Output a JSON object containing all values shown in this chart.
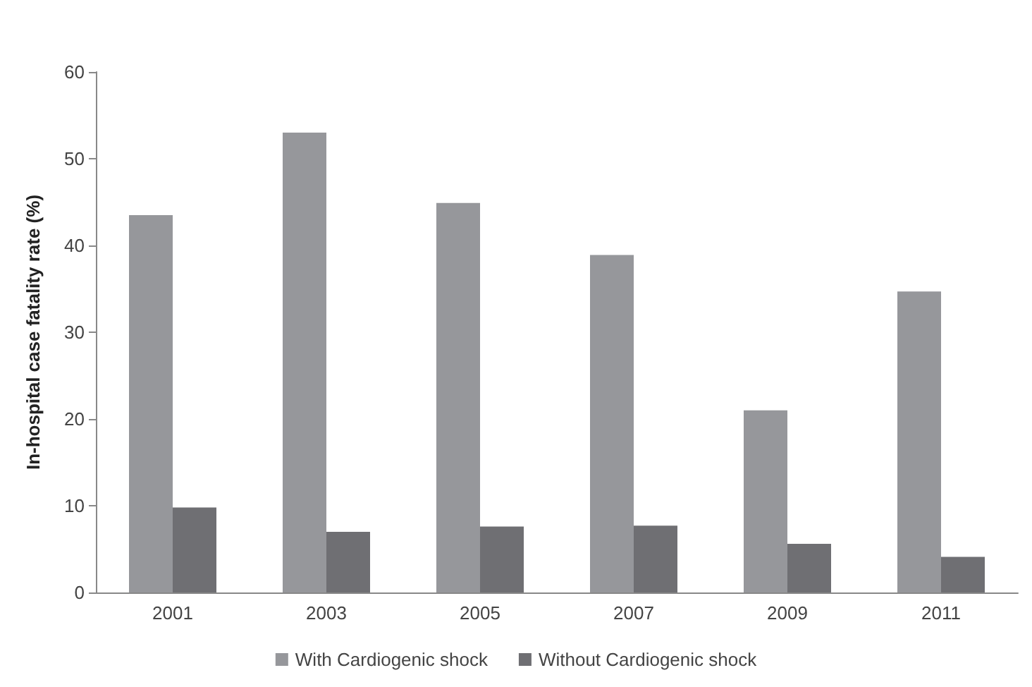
{
  "chart_data": {
    "type": "bar",
    "ylabel": "In-hospital case fatality rate (%)",
    "categories": [
      "2001",
      "2003",
      "2005",
      "2007",
      "2009",
      "2011"
    ],
    "series": [
      {
        "name": "With Cardiogenic shock",
        "color": "#96979b",
        "values": [
          43.5,
          53.0,
          44.9,
          38.9,
          21.0,
          34.7
        ]
      },
      {
        "name": "Without Cardiogenic shock",
        "color": "#6f6f73",
        "values": [
          9.8,
          7.0,
          7.6,
          7.7,
          5.6,
          4.1
        ]
      }
    ],
    "ylim": [
      0,
      60
    ],
    "yticks": [
      0,
      10,
      20,
      30,
      40,
      50,
      60
    ],
    "grid": false,
    "legend": "bottom"
  }
}
